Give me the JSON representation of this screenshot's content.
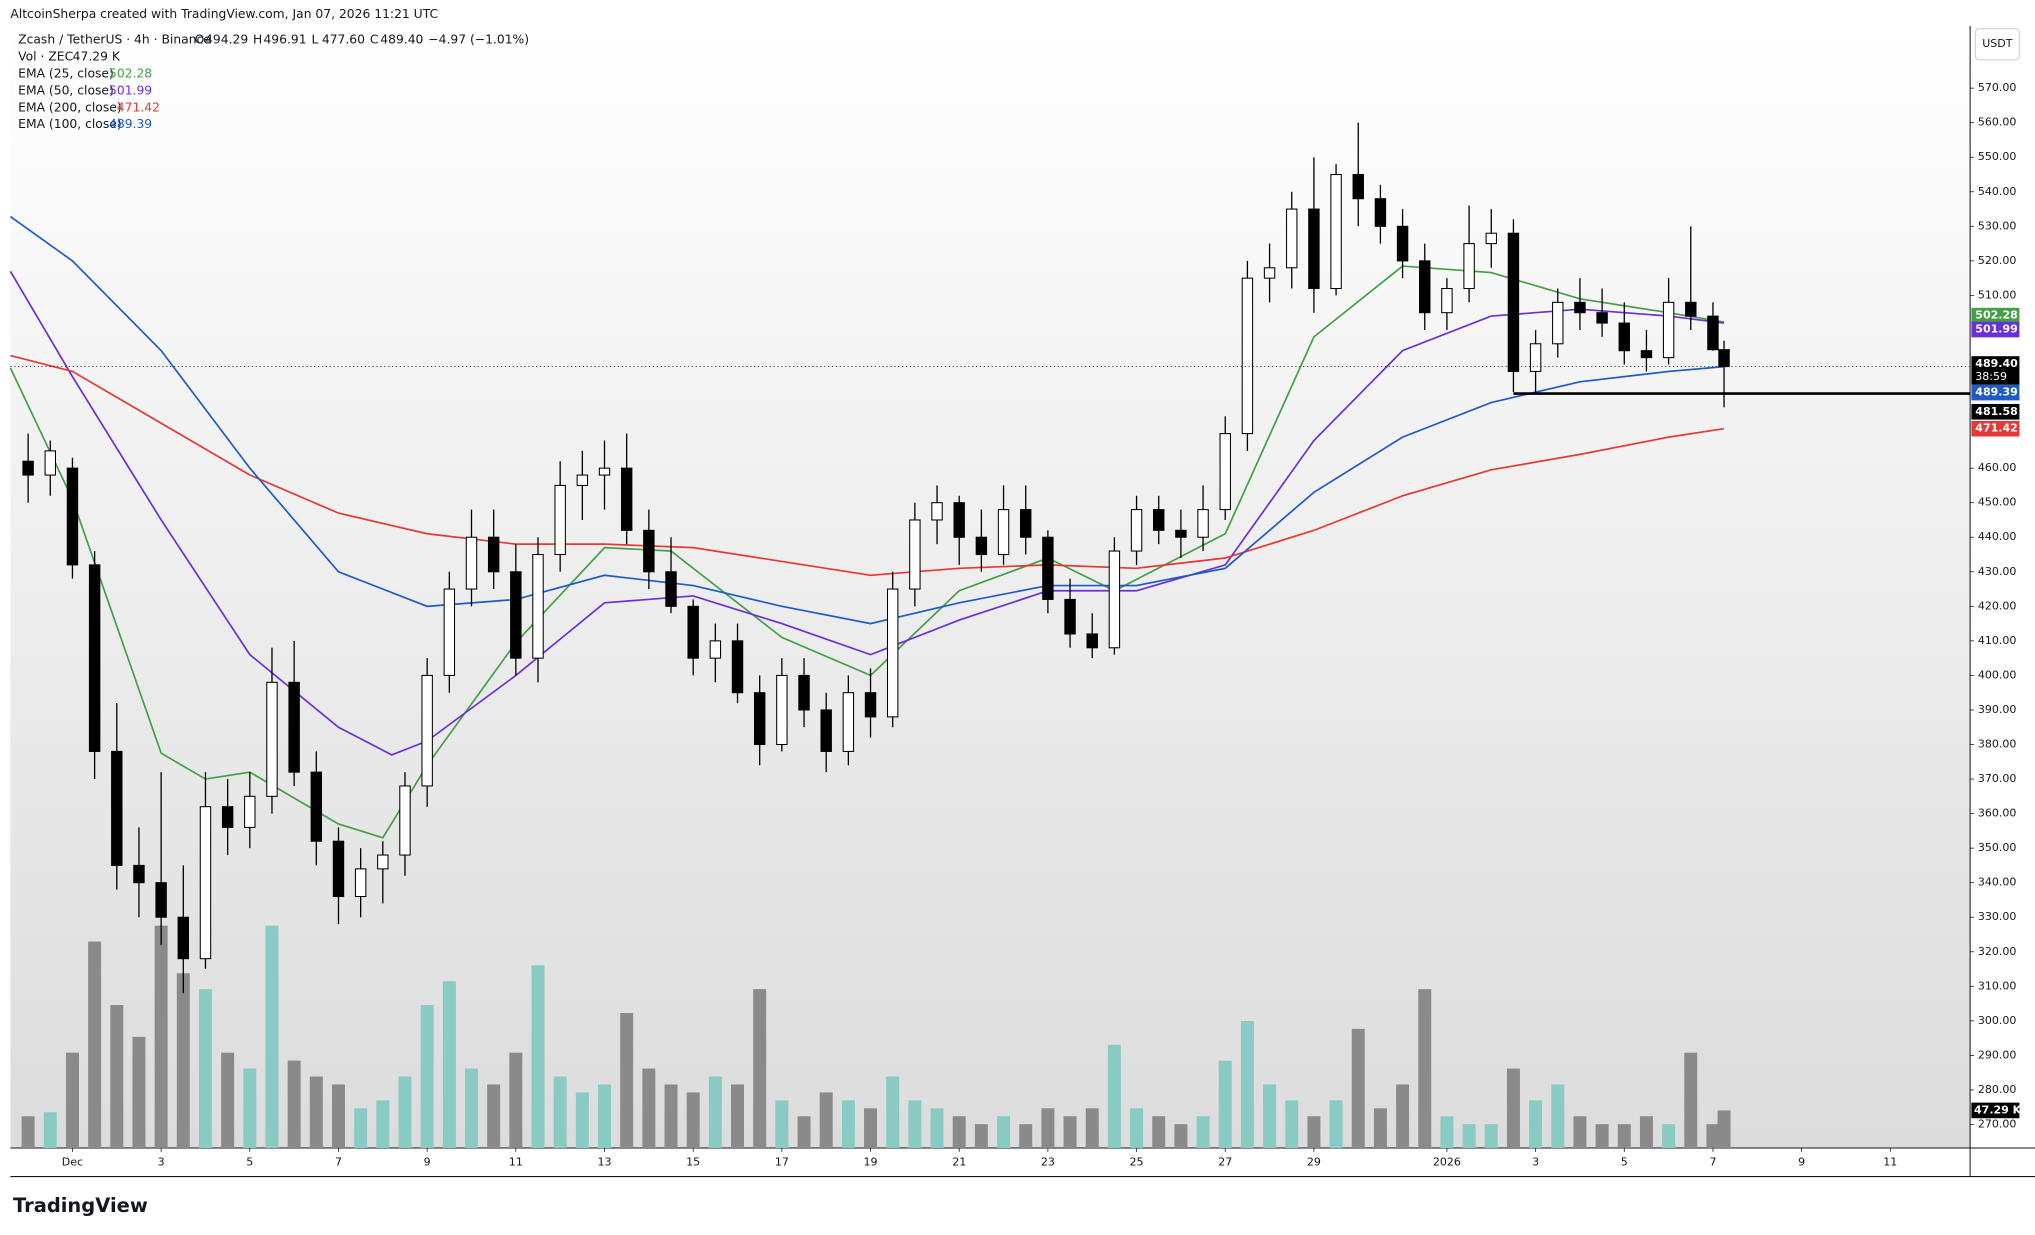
{
  "header": {
    "credit": "AltcoinSherpa created with TradingView.com, Jan 07, 2026 11:21 UTC",
    "logo": "TradingView"
  },
  "chart_data": {
    "type": "candlestick",
    "symbol": "Zcash / TetherUS · 4h · Binance",
    "ohlc_legend": [
      {
        "label": "O",
        "value": "494.29"
      },
      {
        "label": "H",
        "value": "496.91"
      },
      {
        "label": "L",
        "value": "477.60"
      },
      {
        "label": "C",
        "value": "489.40"
      }
    ],
    "change": "−4.97 (−1.01%)",
    "volume_name": "Vol · ZEC",
    "volume_label": "47.29 K",
    "currency": "USDT",
    "last_price_label": "489.40",
    "countdown": "38:59",
    "level": {
      "value": 481.58,
      "label": "481.58",
      "from": 32.5
    },
    "xlim": [
      -1.4,
      42.8
    ],
    "ylim": [
      263.2,
      588.0
    ],
    "vlim": [
      0,
      520
    ],
    "xticks": [
      {
        "value": 0,
        "label": "Dec"
      },
      {
        "value": 2,
        "label": "3"
      },
      {
        "value": 4,
        "label": "5"
      },
      {
        "value": 6,
        "label": "7"
      },
      {
        "value": 8,
        "label": "9"
      },
      {
        "value": 10,
        "label": "11"
      },
      {
        "value": 12,
        "label": "13"
      },
      {
        "value": 14,
        "label": "15"
      },
      {
        "value": 16,
        "label": "17"
      },
      {
        "value": 18,
        "label": "19"
      },
      {
        "value": 20,
        "label": "21"
      },
      {
        "value": 22,
        "label": "23"
      },
      {
        "value": 24,
        "label": "25"
      },
      {
        "value": 26,
        "label": "27"
      },
      {
        "value": 28,
        "label": "29"
      },
      {
        "value": 31,
        "label": "2026"
      },
      {
        "value": 33,
        "label": "3"
      },
      {
        "value": 35,
        "label": "5"
      },
      {
        "value": 37,
        "label": "7"
      },
      {
        "value": 39,
        "label": "9"
      },
      {
        "value": 41,
        "label": "11"
      }
    ],
    "yticks": [
      {
        "value": 570,
        "label": "570.00"
      },
      {
        "value": 560,
        "label": "560.00"
      },
      {
        "value": 550,
        "label": "550.00"
      },
      {
        "value": 540,
        "label": "540.00"
      },
      {
        "value": 530,
        "label": "530.00"
      },
      {
        "value": 520,
        "label": "520.00"
      },
      {
        "value": 510,
        "label": "510.00"
      },
      {
        "value": 460,
        "label": "460.00"
      },
      {
        "value": 450,
        "label": "450.00"
      },
      {
        "value": 440,
        "label": "440.00"
      },
      {
        "value": 430,
        "label": "430.00"
      },
      {
        "value": 420,
        "label": "420.00"
      },
      {
        "value": 410,
        "label": "410.00"
      },
      {
        "value": 400,
        "label": "400.00"
      },
      {
        "value": 390,
        "label": "390.00"
      },
      {
        "value": 380,
        "label": "380.00"
      },
      {
        "value": 370,
        "label": "370.00"
      },
      {
        "value": 360,
        "label": "360.00"
      },
      {
        "value": 350,
        "label": "350.00"
      },
      {
        "value": 340,
        "label": "340.00"
      },
      {
        "value": 330,
        "label": "330.00"
      },
      {
        "value": 320,
        "label": "320.00"
      },
      {
        "value": 310,
        "label": "310.00"
      },
      {
        "value": 300,
        "label": "300.00"
      },
      {
        "value": 290,
        "label": "290.00"
      },
      {
        "value": 280,
        "label": "280.00"
      },
      {
        "value": 270,
        "label": "270.00"
      }
    ],
    "candles": {
      "x": [
        -1,
        -0.5,
        0,
        0.5,
        1,
        1.5,
        2,
        2.5,
        3,
        3.5,
        4,
        4.5,
        5,
        5.5,
        6,
        6.5,
        7,
        7.5,
        8,
        8.5,
        9,
        9.5,
        10,
        10.5,
        11,
        11.5,
        12,
        12.5,
        13,
        13.5,
        14,
        14.5,
        15,
        15.5,
        16,
        16.5,
        17,
        17.5,
        18,
        18.5,
        19,
        19.5,
        20,
        20.5,
        21,
        21.5,
        22,
        22.5,
        23,
        23.5,
        24,
        24.5,
        25,
        25.5,
        26,
        26.5,
        27,
        27.5,
        28,
        28.5,
        29,
        29.5,
        30,
        30.5,
        31,
        31.5,
        32,
        32.5,
        33,
        33.5,
        34,
        34.5,
        35,
        35.5,
        36,
        36.5,
        37,
        37.25
      ],
      "open": [
        462,
        458,
        460,
        432,
        378,
        345,
        340,
        330,
        318,
        362,
        356,
        365,
        398,
        372,
        352,
        336,
        344,
        348,
        368,
        400,
        425,
        440,
        430,
        405,
        435,
        455,
        458,
        460,
        442,
        430,
        420,
        405,
        410,
        395,
        380,
        400,
        390,
        378,
        395,
        388,
        425,
        445,
        450,
        440,
        435,
        448,
        440,
        422,
        412,
        408,
        436,
        448,
        442,
        440,
        448,
        470,
        515,
        518,
        535,
        512,
        545,
        538,
        530,
        520,
        505,
        512,
        525,
        528,
        488,
        496,
        508,
        505,
        502,
        494,
        492,
        508,
        504,
        494.29
      ],
      "high": [
        470,
        468,
        463,
        436,
        392,
        356,
        372,
        345,
        372,
        370,
        372,
        408,
        410,
        378,
        356,
        350,
        352,
        372,
        405,
        430,
        448,
        448,
        438,
        440,
        462,
        465,
        468,
        470,
        448,
        440,
        422,
        415,
        415,
        400,
        405,
        405,
        395,
        400,
        402,
        430,
        450,
        455,
        452,
        448,
        455,
        455,
        442,
        428,
        418,
        440,
        452,
        452,
        448,
        455,
        475,
        520,
        525,
        540,
        550,
        548,
        560,
        542,
        535,
        525,
        515,
        536,
        535,
        532,
        500,
        512,
        515,
        512,
        508,
        500,
        515,
        530,
        508,
        496.91
      ],
      "low": [
        450,
        452,
        428,
        370,
        338,
        330,
        322,
        308,
        315,
        348,
        350,
        360,
        368,
        345,
        328,
        330,
        334,
        342,
        362,
        395,
        420,
        425,
        400,
        398,
        430,
        445,
        448,
        438,
        425,
        418,
        400,
        398,
        392,
        374,
        378,
        385,
        372,
        374,
        382,
        385,
        420,
        438,
        432,
        430,
        432,
        435,
        418,
        408,
        405,
        406,
        432,
        438,
        434,
        436,
        445,
        465,
        508,
        512,
        505,
        510,
        530,
        525,
        515,
        500,
        500,
        508,
        518,
        482,
        482,
        492,
        500,
        498,
        490,
        488,
        490,
        500,
        494,
        477.6
      ],
      "close": [
        458,
        465,
        432,
        378,
        345,
        340,
        330,
        318,
        362,
        356,
        365,
        398,
        372,
        352,
        336,
        344,
        348,
        368,
        400,
        425,
        440,
        430,
        405,
        435,
        455,
        458,
        460,
        442,
        430,
        420,
        405,
        410,
        395,
        380,
        400,
        390,
        378,
        395,
        388,
        425,
        445,
        450,
        440,
        435,
        448,
        440,
        422,
        412,
        408,
        436,
        448,
        442,
        440,
        448,
        470,
        515,
        518,
        535,
        512,
        545,
        538,
        530,
        520,
        505,
        512,
        525,
        528,
        488,
        496,
        508,
        505,
        502,
        494,
        492,
        508,
        504,
        494.29,
        489.4
      ],
      "volume": [
        40,
        45,
        120,
        260,
        180,
        140,
        280,
        220,
        200,
        120,
        100,
        280,
        110,
        90,
        80,
        50,
        60,
        90,
        180,
        210,
        100,
        80,
        120,
        230,
        90,
        70,
        80,
        170,
        100,
        80,
        70,
        90,
        80,
        200,
        60,
        40,
        70,
        60,
        50,
        90,
        60,
        50,
        40,
        30,
        40,
        30,
        50,
        40,
        50,
        130,
        50,
        40,
        30,
        40,
        110,
        160,
        80,
        60,
        40,
        60,
        150,
        50,
        80,
        200,
        40,
        30,
        30,
        100,
        60,
        80,
        40,
        30,
        30,
        40,
        30,
        120,
        30,
        47.29
      ]
    },
    "overlays": [
      {
        "name": "EMA (25, close)",
        "value_label": "502.28",
        "color": "#43a047",
        "x": [
          -1.4,
          0,
          2,
          3,
          4,
          6,
          7,
          8,
          10,
          12,
          13.5,
          16,
          18,
          20,
          22,
          23.5,
          26,
          28,
          30,
          32,
          34,
          36,
          37.25
        ],
        "values": [
          489,
          451,
          377.5,
          370,
          372,
          357,
          353,
          374,
          409.5,
          437,
          436,
          411,
          400,
          424.5,
          434,
          424.5,
          441,
          498,
          518.5,
          516.6,
          509,
          505,
          502.28
        ]
      },
      {
        "name": "EMA (50, close)",
        "value_label": "501.99",
        "color": "#6a2fd6",
        "x": [
          -1.4,
          0,
          2,
          4,
          6,
          7.2,
          8,
          10,
          12,
          14,
          16,
          18,
          20,
          22,
          24,
          26,
          28,
          30,
          32,
          34,
          36,
          37.25
        ],
        "values": [
          517,
          486.5,
          445,
          406,
          385,
          377,
          381,
          400,
          421,
          423,
          415,
          406,
          416,
          424.5,
          424.5,
          432,
          468,
          494,
          504,
          506,
          504,
          501.99
        ]
      },
      {
        "name": "EMA (200, close)",
        "value_label": "471.42",
        "color": "#e53935",
        "x": [
          -1.4,
          0,
          2,
          4,
          6,
          8,
          10,
          12,
          14,
          16,
          18,
          20,
          22,
          24,
          26,
          28,
          30,
          32,
          34,
          36,
          37.25
        ],
        "values": [
          492.6,
          488,
          473,
          458,
          447,
          441,
          438,
          438,
          437,
          433,
          429,
          431,
          432,
          431,
          434,
          442,
          452,
          459.5,
          464,
          469,
          471.42
        ]
      },
      {
        "name": "EMA (100, close)",
        "value_label": "489.39",
        "color": "#1e5bc6",
        "x": [
          -1.4,
          0,
          2,
          4,
          6,
          8,
          10,
          12,
          14,
          16,
          18,
          20,
          22,
          24,
          26,
          28,
          30,
          32,
          34,
          36,
          37.25
        ],
        "values": [
          532.8,
          520,
          494,
          460,
          430,
          420,
          422,
          429,
          426,
          420,
          415,
          421,
          426,
          426,
          431,
          453,
          469,
          479,
          485,
          488,
          489.39
        ]
      }
    ]
  }
}
